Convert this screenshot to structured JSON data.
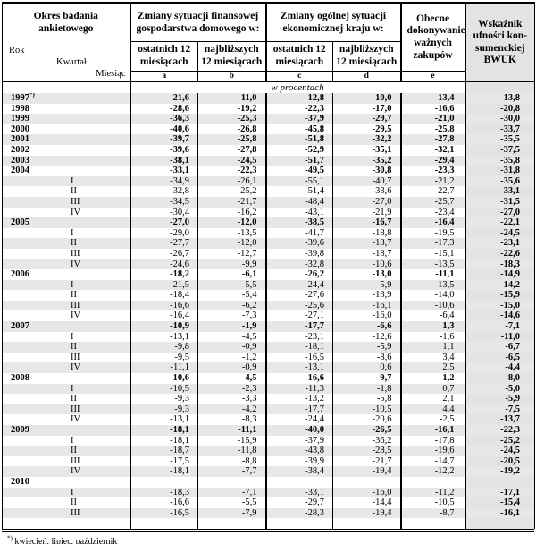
{
  "table": {
    "col1_header": {
      "title": "Okres badania ankietowego",
      "rok": "Rok",
      "kwartal": "Kwartał",
      "miesiac": "Miesiąc"
    },
    "groups": [
      {
        "title": "Zmiany sytuacji finansowej gospodarstwa domowego w:"
      },
      {
        "title": "Zmiany ogólnej sytuacji ekonomicznej kraju w:"
      }
    ],
    "subheaders": [
      "ostatnich 12 miesiącach",
      "najbliższych 12 miesiącach",
      "ostatnich 12 miesiącach",
      "najbliższych 12 miesiącach"
    ],
    "col_e_header": "Obecne dokonywanie ważnych zakupów",
    "bwuk_header": "Wskaźnik ufności kon&#8209;sumenckiej BWUK",
    "bwuk_header_lines": [
      "Wskaźnik",
      "ufności kon-",
      "sumenckiej",
      "BWUK"
    ],
    "letters": [
      "a",
      "b",
      "c",
      "d",
      "e"
    ],
    "unit_row": "w procentach",
    "colors": {
      "band": "#e7e7e7",
      "bwuk_column": "#e3e3e3",
      "border": "#000000"
    },
    "rows": [
      {
        "label": "1997",
        "sup": "*)",
        "type": "year",
        "v": [
          "-21,6",
          "-11,0",
          "-12,8",
          "-10,0",
          "-13,4",
          "-13,8"
        ]
      },
      {
        "label": "1998",
        "type": "year",
        "v": [
          "-28,6",
          "-19,2",
          "-22,3",
          "-17,0",
          "-16,6",
          "-20,8"
        ]
      },
      {
        "label": "1999",
        "type": "year",
        "v": [
          "-36,3",
          "-25,3",
          "-37,9",
          "-29,7",
          "-21,0",
          "-30,0"
        ]
      },
      {
        "label": "2000",
        "type": "year",
        "v": [
          "-40,6",
          "-26,8",
          "-45,8",
          "-29,5",
          "-25,8",
          "-33,7"
        ]
      },
      {
        "label": "2001",
        "type": "year",
        "v": [
          "-39,7",
          "-25,8",
          "-51,8",
          "-32,2",
          "-27,8",
          "-35,5"
        ]
      },
      {
        "label": "2002",
        "type": "year",
        "v": [
          "-39,6",
          "-27,8",
          "-52,9",
          "-35,1",
          "-32,1",
          "-37,5"
        ]
      },
      {
        "label": "2003",
        "type": "year",
        "v": [
          "-38,1",
          "-24,5",
          "-51,7",
          "-35,2",
          "-29,4",
          "-35,8"
        ]
      },
      {
        "label": "2004",
        "type": "year",
        "v": [
          "-33,1",
          "-22,3",
          "-49,5",
          "-30,8",
          "-23,3",
          "-31,8"
        ]
      },
      {
        "label": "I",
        "type": "quarter",
        "v": [
          "-34,9",
          "-26,1",
          "-55,1",
          "-40,7",
          "-21,2",
          "-35,6"
        ]
      },
      {
        "label": "II",
        "type": "quarter",
        "v": [
          "-32,8",
          "-25,2",
          "-51,4",
          "-33,6",
          "-22,7",
          "-33,1"
        ]
      },
      {
        "label": "III",
        "type": "quarter",
        "v": [
          "-34,5",
          "-21,7",
          "-48,4",
          "-27,0",
          "-25,7",
          "-31,5"
        ]
      },
      {
        "label": "IV",
        "type": "quarter",
        "v": [
          "-30,4",
          "-16,2",
          "-43,1",
          "-21,9",
          "-23,4",
          "-27,0"
        ]
      },
      {
        "label": "2005",
        "type": "year",
        "v": [
          "-27,0",
          "-12,0",
          "-38,5",
          "-16,7",
          "-16,4",
          "-22,1"
        ]
      },
      {
        "label": "I",
        "type": "quarter",
        "v": [
          "-29,0",
          "-13,5",
          "-41,7",
          "-18,8",
          "-19,5",
          "-24,5"
        ]
      },
      {
        "label": "II",
        "type": "quarter",
        "v": [
          "-27,7",
          "-12,0",
          "-39,6",
          "-18,7",
          "-17,3",
          "-23,1"
        ]
      },
      {
        "label": "III",
        "type": "quarter",
        "v": [
          "-26,7",
          "-12,7",
          "-39,8",
          "-18,7",
          "-15,1",
          "-22,6"
        ]
      },
      {
        "label": "IV",
        "type": "quarter",
        "v": [
          "-24,6",
          "-9,9",
          "-32,8",
          "-10,6",
          "-13,5",
          "-18,3"
        ]
      },
      {
        "label": "2006",
        "type": "year",
        "v": [
          "-18,2",
          "-6,1",
          "-26,2",
          "-13,0",
          "-11,1",
          "-14,9"
        ]
      },
      {
        "label": "I",
        "type": "quarter",
        "v": [
          "-21,5",
          "-5,5",
          "-24,4",
          "-5,9",
          "-13,5",
          "-14,2"
        ]
      },
      {
        "label": "II",
        "type": "quarter",
        "v": [
          "-18,4",
          "-5,4",
          "-27,6",
          "-13,9",
          "-14,0",
          "-15,9"
        ]
      },
      {
        "label": "III",
        "type": "quarter",
        "v": [
          "-16,6",
          "-6,2",
          "-25,6",
          "-16,1",
          "-10,6",
          "-15,0"
        ]
      },
      {
        "label": "IV",
        "type": "quarter",
        "v": [
          "-16,4",
          "-7,3",
          "-27,1",
          "-16,0",
          "-6,4",
          "-14,6"
        ]
      },
      {
        "label": "2007",
        "type": "year",
        "v": [
          "-10,9",
          "-1,9",
          "-17,7",
          "-6,6",
          "1,3",
          "-7,1"
        ]
      },
      {
        "label": "I",
        "type": "quarter",
        "v": [
          "-13,1",
          "-4,5",
          "-23,1",
          "-12,6",
          "-1,6",
          "-11,0"
        ]
      },
      {
        "label": "II",
        "type": "quarter",
        "v": [
          "-9,8",
          "-0,9",
          "-18,1",
          "-5,9",
          "1,1",
          "-6,7"
        ]
      },
      {
        "label": "III",
        "type": "quarter",
        "v": [
          "-9,5",
          "-1,2",
          "-16,5",
          "-8,6",
          "3,4",
          "-6,5"
        ]
      },
      {
        "label": "IV",
        "type": "quarter",
        "v": [
          "-11,1",
          "-0,9",
          "-13,1",
          "0,6",
          "2,5",
          "-4,4"
        ]
      },
      {
        "label": "2008",
        "type": "year",
        "v": [
          "-10,6",
          "-4,5",
          "-16,6",
          "-9,7",
          "1,2",
          "-8,0"
        ]
      },
      {
        "label": "I",
        "type": "quarter",
        "v": [
          "-10,5",
          "-2,3",
          "-11,3",
          "-1,8",
          "0,7",
          "-5,0"
        ]
      },
      {
        "label": "II",
        "type": "quarter",
        "v": [
          "-9,3",
          "-3,3",
          "-13,2",
          "-5,8",
          "2,1",
          "-5,9"
        ]
      },
      {
        "label": "III",
        "type": "quarter",
        "v": [
          "-9,3",
          "-4,2",
          "-17,7",
          "-10,5",
          "4,4",
          "-7,5"
        ]
      },
      {
        "label": "IV",
        "type": "quarter",
        "v": [
          "-13,1",
          "-8,3",
          "-24,4",
          "-20,6",
          "-2,5",
          "-13,7"
        ]
      },
      {
        "label": "2009",
        "type": "year",
        "v": [
          "-18,1",
          "-11,1",
          "-40,0",
          "-26,5",
          "-16,1",
          "-22,3"
        ]
      },
      {
        "label": "I",
        "type": "quarter",
        "v": [
          "-18,1",
          "-15,9",
          "-37,9",
          "-36,2",
          "-17,8",
          "-25,2"
        ]
      },
      {
        "label": "II",
        "type": "quarter",
        "v": [
          "-18,7",
          "-11,8",
          "-43,8",
          "-28,5",
          "-19,6",
          "-24,5"
        ]
      },
      {
        "label": "III",
        "type": "quarter",
        "v": [
          "-17,5",
          "-8,8",
          "-39,9",
          "-21,7",
          "-14,7",
          "-20,5"
        ]
      },
      {
        "label": "IV",
        "type": "quarter",
        "v": [
          "-18,1",
          "-7,7",
          "-38,4",
          "-19,4",
          "-12,2",
          "-19,2"
        ]
      },
      {
        "label": "2010",
        "type": "year",
        "v": [
          "",
          "",
          "",
          "",
          "",
          ""
        ]
      },
      {
        "label": "I",
        "type": "quarter",
        "v": [
          "-18,3",
          "-7,1",
          "-33,1",
          "-16,0",
          "-11,2",
          "-17,1"
        ]
      },
      {
        "label": "II",
        "type": "quarter",
        "v": [
          "-16,6",
          "-5,5",
          "-29,7",
          "-14,4",
          "-10,5",
          "-15,4"
        ]
      },
      {
        "label": "III",
        "type": "quarter",
        "v": [
          "-16,5",
          "-7,9",
          "-28,3",
          "-19,4",
          "-8,7",
          "-16,1"
        ]
      },
      {
        "label": "",
        "type": "quarter",
        "v": [
          "",
          "",
          "",
          "",
          "",
          ""
        ]
      }
    ],
    "footnote": {
      "marker": "*)",
      "text": " kwiecień, lipiec, październik"
    }
  }
}
